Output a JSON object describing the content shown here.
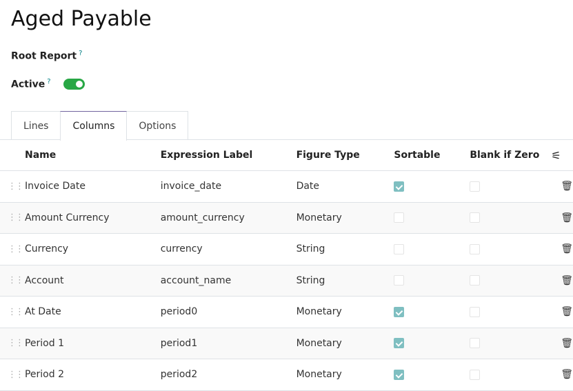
{
  "title": "Aged Payable",
  "fields": {
    "root_report": "Root Report",
    "active": "Active",
    "help": "?",
    "active_value": true
  },
  "colors": {
    "toggle": "#28a745",
    "checkbox": "#7fbfc1",
    "tab_active": "#71639e"
  },
  "tabs": [
    {
      "label": "Lines"
    },
    {
      "label": "Columns",
      "active": true
    },
    {
      "label": "Options"
    }
  ],
  "table": {
    "headers": [
      "Name",
      "Expression Label",
      "Figure Type",
      "Sortable",
      "Blank if Zero"
    ],
    "settings_icon": "sliders-icon",
    "rows": [
      {
        "name": "Invoice Date",
        "expr": "invoice_date",
        "type": "Date",
        "sortable": true,
        "blank": false
      },
      {
        "name": "Amount Currency",
        "expr": "amount_currency",
        "type": "Monetary",
        "sortable": false,
        "blank": false
      },
      {
        "name": "Currency",
        "expr": "currency",
        "type": "String",
        "sortable": false,
        "blank": false
      },
      {
        "name": "Account",
        "expr": "account_name",
        "type": "String",
        "sortable": false,
        "blank": false
      },
      {
        "name": "At Date",
        "expr": "period0",
        "type": "Monetary",
        "sortable": true,
        "blank": false
      },
      {
        "name": "Period 1",
        "expr": "period1",
        "type": "Monetary",
        "sortable": true,
        "blank": false
      },
      {
        "name": "Period 2",
        "expr": "period2",
        "type": "Monetary",
        "sortable": true,
        "blank": false
      }
    ]
  }
}
